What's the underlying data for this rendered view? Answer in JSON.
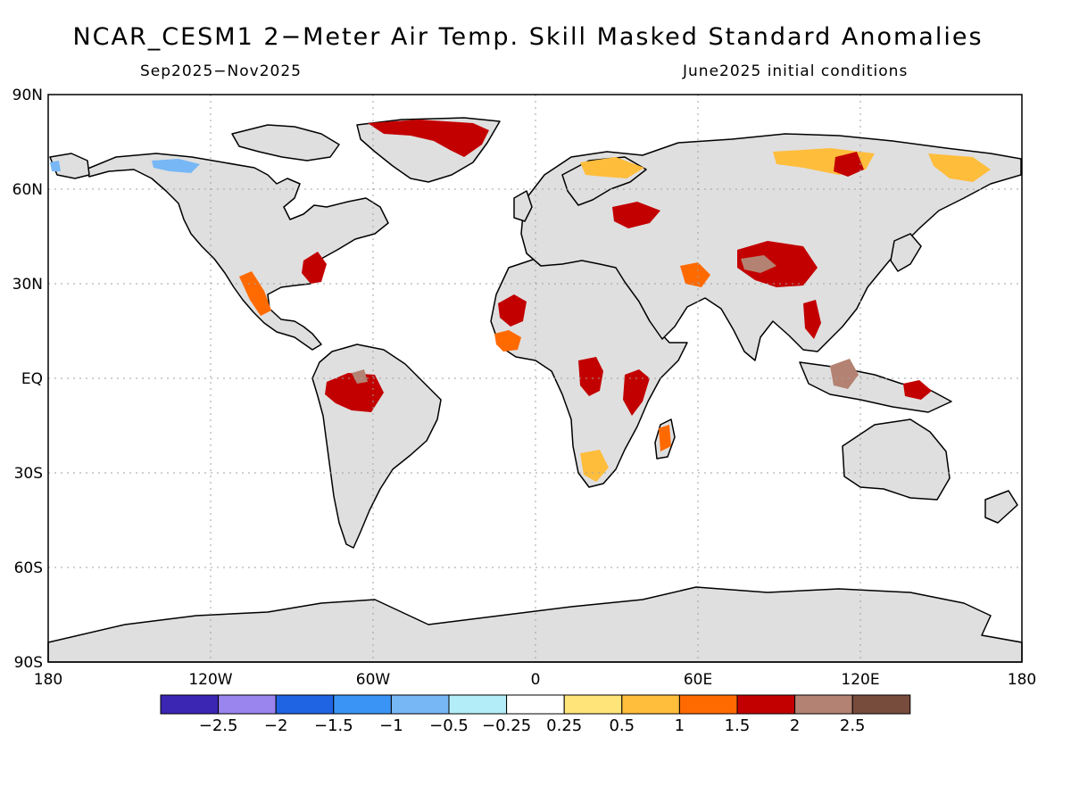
{
  "title": "NCAR_CESM1 2−Meter Air Temp. Skill Masked Standard Anomalies",
  "subtitle_left": "Sep2025−Nov2025",
  "subtitle_right": "June2025 initial conditions",
  "lat_labels": [
    "90N",
    "60N",
    "30N",
    "EQ",
    "30S",
    "60S",
    "90S"
  ],
  "lon_labels": [
    "180",
    "120W",
    "60W",
    "0",
    "60E",
    "120E",
    "180"
  ],
  "colorbar": {
    "colors": [
      "#3a26b3",
      "#9a84ee",
      "#1f64e3",
      "#3a94f5",
      "#77b7f6",
      "#b3eef8",
      "#ffffff",
      "#ffe47a",
      "#ffbd3c",
      "#ff6a00",
      "#c30000",
      "#b48272",
      "#774c3c"
    ],
    "labels": [
      "−2.5",
      "−2",
      "−1.5",
      "−1",
      "−0.5",
      "−0.25",
      "0.25",
      "0.5",
      "1",
      "1.5",
      "2",
      "2.5"
    ]
  },
  "colors": {
    "land": "#dfdfdf",
    "ocean": "#ffffff",
    "coast": "#000000",
    "grid": "#a0a0a0"
  }
}
